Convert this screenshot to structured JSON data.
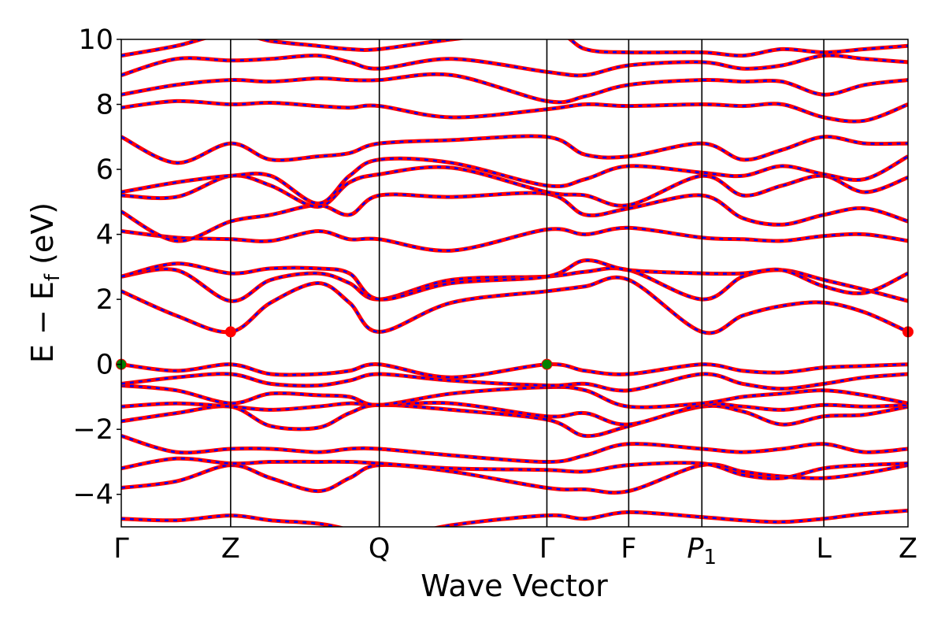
{
  "chart_data": {
    "type": "line",
    "xlabel": "Wave Vector",
    "ylabel": "E − E",
    "ylabel_sub": "f",
    "ylabel_unit": " (eV)",
    "ylim": [
      -5,
      10
    ],
    "xlim": [
      0,
      10
    ],
    "yticks": [
      10,
      8,
      6,
      4,
      2,
      0,
      -2,
      -4
    ],
    "ytick_labels": [
      "10",
      "8",
      "6",
      "4",
      "2",
      "0",
      "−2",
      "−4"
    ],
    "kpoints": [
      {
        "label": "Γ",
        "x": 0
      },
      {
        "label": "Z",
        "x": 1.39
      },
      {
        "label": "Q",
        "x": 3.28
      },
      {
        "label": "Γ",
        "x": 5.41
      },
      {
        "label": "F",
        "x": 6.45
      },
      {
        "label": "P",
        "sub": "1",
        "x": 7.38
      },
      {
        "label": "L",
        "x": 8.93
      },
      {
        "label": "Z",
        "x": 10
      }
    ],
    "colors": {
      "band_solid": "#ff0000",
      "band_dash": "#0000ff",
      "vbm_marker": "#008000",
      "cbm_marker": "#ff0000",
      "frame": "#000000"
    },
    "series": [
      {
        "values": [
          -4.75,
          -4.8,
          -4.65,
          -4.8,
          -4.9,
          -5.1,
          -5.4,
          -4.95,
          -4.65,
          -4.75,
          -4.55,
          -4.7,
          -4.8,
          -4.85,
          -4.75,
          -4.6,
          -4.5
        ]
      },
      {
        "values": [
          -3.8,
          -3.6,
          -3.1,
          -3.5,
          -3.9,
          -3.5,
          -3.1,
          -3.3,
          -3.8,
          -3.85,
          -3.9,
          -3.1,
          -3.3,
          -3.45,
          -3.5,
          -3.35,
          -3.1
        ]
      },
      {
        "values": [
          -3.2,
          -2.9,
          -3.05,
          -3.0,
          -3.0,
          -3.0,
          -3.05,
          -3.2,
          -3.25,
          -3.3,
          -3.1,
          -3.05,
          -3.4,
          -3.5,
          -3.2,
          -3.1,
          -3.05
        ]
      },
      {
        "values": [
          -2.2,
          -2.7,
          -2.6,
          -2.6,
          -2.7,
          -2.6,
          -2.6,
          -2.8,
          -3.0,
          -2.8,
          -2.45,
          -2.6,
          -2.7,
          -2.6,
          -2.45,
          -2.7,
          -2.6
        ]
      },
      {
        "values": [
          -1.75,
          -1.5,
          -1.3,
          -1.9,
          -1.95,
          -1.5,
          -1.25,
          -1.4,
          -1.7,
          -2.2,
          -1.9,
          -1.3,
          -1.45,
          -1.85,
          -1.6,
          -1.55,
          -1.3
        ]
      },
      {
        "values": [
          -1.3,
          -1.2,
          -1.3,
          -1.4,
          -1.3,
          -1.2,
          -1.25,
          -1.2,
          -1.6,
          -1.5,
          -1.85,
          -1.25,
          -1.3,
          -1.4,
          -1.25,
          -1.3,
          -1.25
        ]
      },
      {
        "values": [
          -0.65,
          -0.8,
          -1.2,
          -0.9,
          -0.95,
          -1.0,
          -1.25,
          -0.9,
          -0.7,
          -0.8,
          -1.3,
          -1.2,
          -1.0,
          -0.9,
          -0.8,
          -0.95,
          -1.2
        ]
      },
      {
        "values": [
          -0.6,
          -0.4,
          -0.3,
          -0.6,
          -0.65,
          -0.5,
          -0.3,
          -0.5,
          -0.65,
          -0.6,
          -0.8,
          -0.3,
          -0.6,
          -0.75,
          -0.6,
          -0.4,
          -0.3
        ]
      },
      {
        "values": [
          0.0,
          -0.2,
          0.0,
          -0.3,
          -0.3,
          -0.2,
          0.0,
          -0.4,
          0.0,
          -0.2,
          -0.3,
          0.0,
          -0.2,
          -0.25,
          -0.1,
          -0.05,
          0.0
        ]
      },
      {
        "values": [
          2.25,
          1.5,
          1.0,
          1.9,
          2.5,
          1.9,
          1.0,
          1.9,
          2.25,
          2.4,
          2.6,
          1.0,
          1.5,
          1.8,
          1.9,
          1.6,
          1.0
        ]
      },
      {
        "values": [
          2.7,
          2.9,
          1.95,
          2.6,
          2.8,
          2.5,
          2.0,
          2.6,
          2.7,
          2.85,
          2.9,
          2.0,
          2.7,
          2.9,
          2.6,
          2.3,
          1.95
        ]
      },
      {
        "values": [
          2.7,
          3.1,
          2.8,
          2.95,
          2.95,
          2.8,
          2.0,
          2.5,
          2.7,
          3.2,
          2.9,
          2.8,
          2.8,
          2.9,
          2.4,
          2.2,
          2.8
        ]
      },
      {
        "values": [
          4.1,
          3.9,
          3.85,
          3.8,
          4.1,
          3.85,
          3.85,
          3.5,
          4.15,
          4.0,
          4.2,
          3.9,
          3.85,
          3.8,
          3.95,
          4.0,
          3.8
        ]
      },
      {
        "values": [
          4.7,
          3.8,
          4.4,
          4.6,
          4.9,
          4.6,
          5.2,
          5.15,
          5.25,
          4.6,
          4.8,
          5.2,
          4.5,
          4.3,
          4.6,
          4.8,
          4.4
        ]
      },
      {
        "values": [
          5.2,
          5.15,
          5.8,
          5.5,
          4.85,
          5.6,
          5.85,
          6.05,
          5.3,
          5.2,
          4.9,
          5.8,
          5.2,
          5.5,
          5.8,
          5.3,
          5.75
        ]
      },
      {
        "values": [
          5.3,
          5.6,
          5.8,
          5.8,
          4.95,
          5.8,
          6.3,
          6.2,
          5.5,
          5.7,
          6.1,
          5.9,
          5.8,
          6.1,
          5.85,
          5.7,
          6.4
        ]
      },
      {
        "values": [
          7.0,
          6.2,
          6.8,
          6.3,
          6.4,
          6.5,
          6.8,
          6.9,
          7.0,
          6.45,
          6.4,
          6.8,
          6.3,
          6.6,
          7.0,
          6.8,
          6.8
        ]
      },
      {
        "values": [
          7.9,
          8.1,
          8.0,
          8.05,
          7.95,
          7.9,
          7.95,
          7.6,
          7.85,
          8.0,
          7.95,
          8.0,
          7.95,
          8.0,
          7.6,
          7.5,
          8.0
        ]
      },
      {
        "values": [
          8.3,
          8.6,
          8.75,
          8.7,
          8.8,
          8.75,
          8.75,
          8.9,
          8.1,
          8.25,
          8.6,
          8.75,
          8.7,
          8.7,
          8.3,
          8.6,
          8.75
        ]
      },
      {
        "values": [
          8.9,
          9.4,
          9.35,
          9.4,
          9.5,
          9.3,
          9.1,
          9.4,
          9.0,
          8.9,
          9.2,
          9.3,
          9.1,
          9.2,
          9.5,
          9.4,
          9.3
        ]
      },
      {
        "values": [
          9.5,
          9.8,
          10.2,
          9.95,
          9.8,
          9.7,
          9.7,
          10.0,
          10.3,
          9.7,
          9.6,
          9.6,
          9.5,
          9.7,
          9.6,
          9.7,
          9.8
        ]
      }
    ],
    "series_x": [
      0,
      0.7,
      1.39,
      1.9,
      2.5,
      2.9,
      3.28,
      4.2,
      5.41,
      5.9,
      6.45,
      7.38,
      7.9,
      8.4,
      8.93,
      9.45,
      10
    ],
    "markers": [
      {
        "x": 0,
        "y": 0,
        "color": "vbm"
      },
      {
        "x": 5.41,
        "y": 0,
        "color": "vbm"
      },
      {
        "x": 1.39,
        "y": 1.0,
        "color": "cbm"
      },
      {
        "x": 10,
        "y": 1.0,
        "color": "cbm"
      }
    ]
  }
}
